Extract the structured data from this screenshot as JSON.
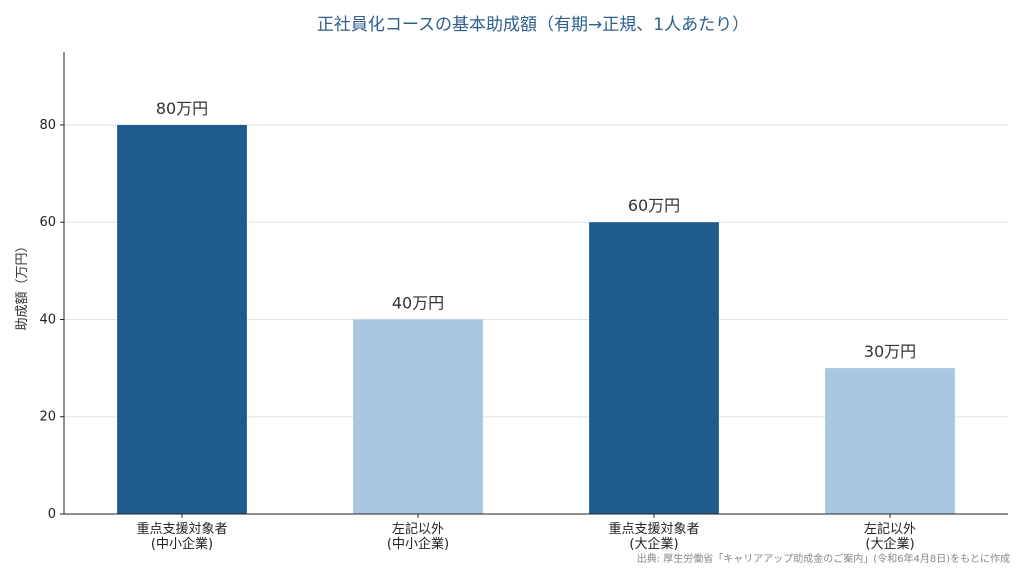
{
  "chart_data": {
    "type": "bar",
    "title": "正社員化コースの基本助成額（有期→正規、1人あたり）",
    "ylabel": "助成額（万円）",
    "xlabel": "",
    "ylim": [
      0,
      95
    ],
    "yticks": [
      "0",
      "20",
      "40",
      "60",
      "80"
    ],
    "grid": true,
    "categories": [
      [
        "重点支援対象者",
        "(中小企業)"
      ],
      [
        "左記以外",
        "(中小企業)"
      ],
      [
        "重点支援対象者",
        "(大企業)"
      ],
      [
        "左記以外",
        "(大企業)"
      ]
    ],
    "values": [
      80,
      40,
      60,
      30
    ],
    "data_labels": [
      "80万円",
      "40万円",
      "60万円",
      "30万円"
    ],
    "colors": [
      "#1f5b8c",
      "#a9c7e1",
      "#1f5b8c",
      "#a9c7e1"
    ]
  },
  "source": "出典: 厚生労働省「キャリアアップ助成金のご案内」(令和6年4月8日)をもとに作成"
}
